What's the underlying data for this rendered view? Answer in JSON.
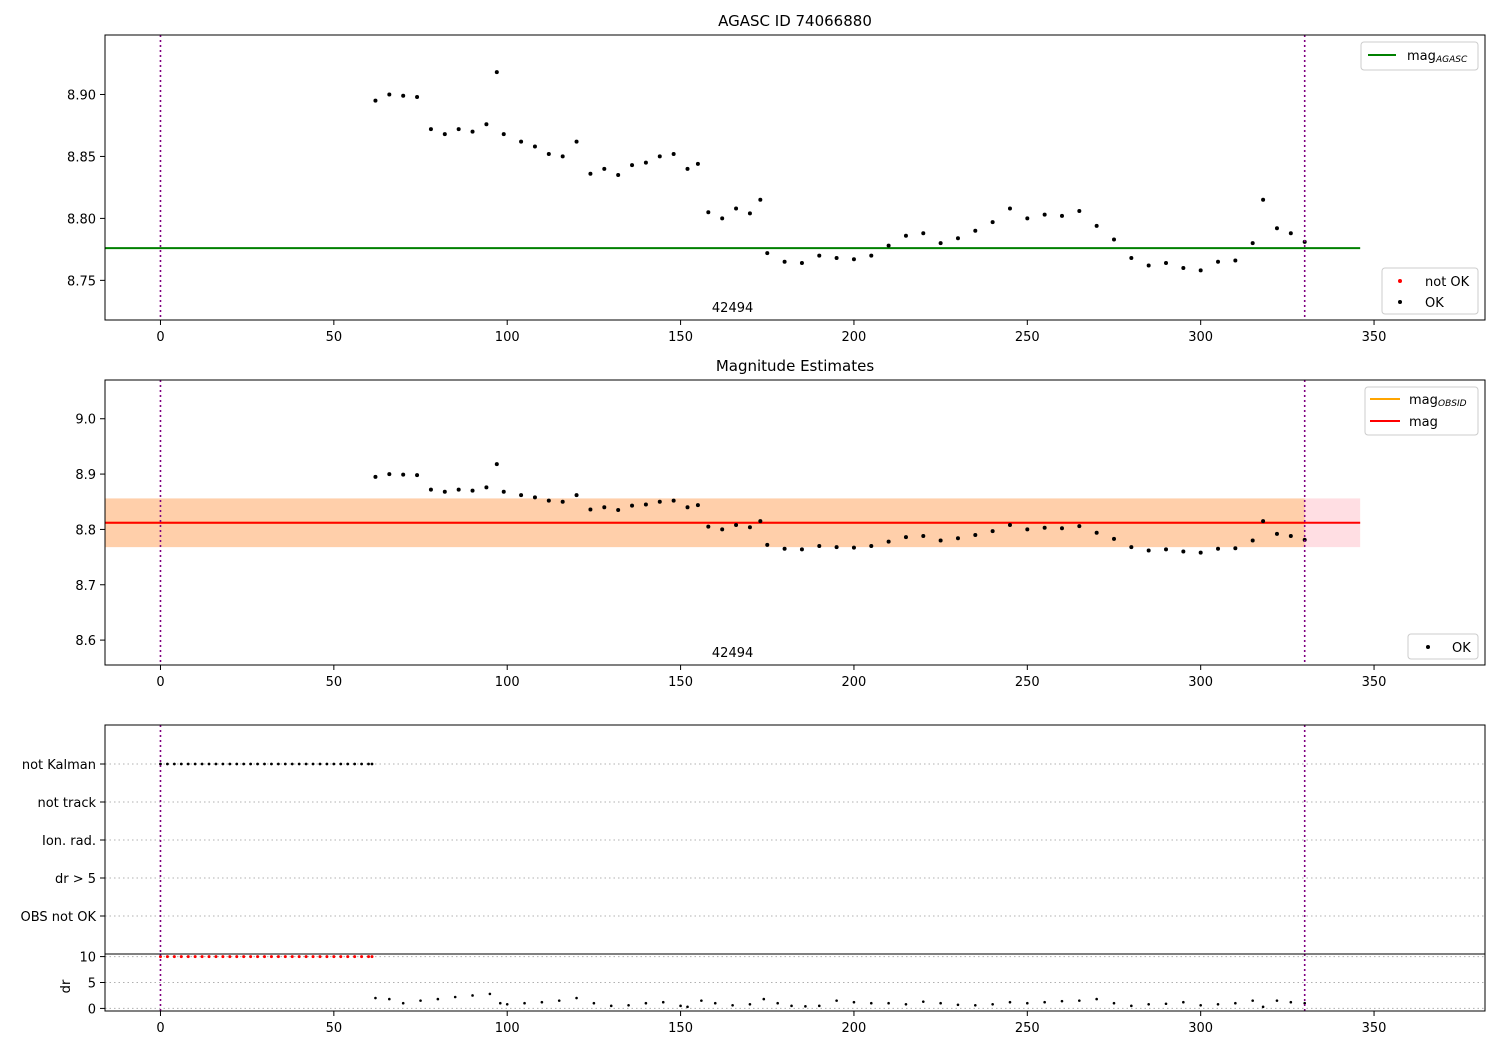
{
  "chart_data": [
    {
      "type": "scatter",
      "title": "AGASC ID 74066880",
      "annotation": "42494",
      "x_ticks": [
        "0",
        "50",
        "100",
        "150",
        "200",
        "250",
        "300",
        "350"
      ],
      "y_ticks": [
        "8.75",
        "8.80",
        "8.85",
        "8.90"
      ],
      "xlim": [
        -16,
        382
      ],
      "ylim": [
        8.718,
        8.948
      ],
      "mag_agasc": 8.776,
      "vlines": [
        0,
        330
      ],
      "legend_lines": [
        {
          "label": "mag",
          "sub": "AGASC",
          "color": "#008000"
        }
      ],
      "legend_points": [
        {
          "label": "not OK",
          "color": "#ff0000"
        },
        {
          "label": "OK",
          "color": "#000000"
        }
      ],
      "series": [
        {
          "name": "OK",
          "x": [
            62,
            66,
            70,
            74,
            78,
            82,
            86,
            90,
            94,
            97,
            99,
            104,
            108,
            112,
            116,
            120,
            124,
            128,
            132,
            136,
            140,
            144,
            148,
            152,
            155,
            158,
            162,
            166,
            170,
            173,
            175,
            180,
            185,
            190,
            195,
            200,
            205,
            210,
            215,
            220,
            225,
            230,
            235,
            240,
            245,
            250,
            255,
            260,
            265,
            270,
            275,
            280,
            285,
            290,
            295,
            300,
            305,
            310,
            315,
            318,
            322,
            326,
            330
          ],
          "y": [
            8.895,
            8.9,
            8.899,
            8.898,
            8.872,
            8.868,
            8.872,
            8.87,
            8.876,
            8.918,
            8.868,
            8.862,
            8.858,
            8.852,
            8.85,
            8.862,
            8.836,
            8.84,
            8.835,
            8.843,
            8.845,
            8.85,
            8.852,
            8.84,
            8.844,
            8.805,
            8.8,
            8.808,
            8.804,
            8.815,
            8.772,
            8.765,
            8.764,
            8.77,
            8.768,
            8.767,
            8.77,
            8.778,
            8.786,
            8.788,
            8.78,
            8.784,
            8.79,
            8.797,
            8.808,
            8.8,
            8.803,
            8.802,
            8.806,
            8.794,
            8.783,
            8.768,
            8.762,
            8.764,
            8.76,
            8.758,
            8.765,
            8.766,
            8.78,
            8.815,
            8.792,
            8.788,
            8.781
          ]
        },
        {
          "name": "not OK",
          "x": [],
          "y": []
        }
      ]
    },
    {
      "type": "scatter",
      "title": "Magnitude Estimates",
      "annotation": "42494",
      "x_ticks": [
        "0",
        "50",
        "100",
        "150",
        "200",
        "250",
        "300",
        "350"
      ],
      "y_ticks": [
        "8.6",
        "8.7",
        "8.8",
        "8.9",
        "9.0"
      ],
      "xlim": [
        -16,
        382
      ],
      "ylim": [
        8.555,
        9.07
      ],
      "mag": 8.812,
      "mag_obsid": 8.812,
      "band_mag": [
        8.768,
        8.856
      ],
      "band_obsid": [
        8.768,
        8.856
      ],
      "vlines": [
        0,
        330
      ],
      "legend_lines": [
        {
          "label": "mag",
          "sub": "OBSID",
          "color": "#ffa500"
        },
        {
          "label": "mag",
          "sub": "",
          "color": "#ff0000"
        }
      ],
      "legend_points": [
        {
          "label": "OK",
          "color": "#000000"
        }
      ],
      "series": [
        {
          "name": "OK",
          "x": [
            62,
            66,
            70,
            74,
            78,
            82,
            86,
            90,
            94,
            97,
            99,
            104,
            108,
            112,
            116,
            120,
            124,
            128,
            132,
            136,
            140,
            144,
            148,
            152,
            155,
            158,
            162,
            166,
            170,
            173,
            175,
            180,
            185,
            190,
            195,
            200,
            205,
            210,
            215,
            220,
            225,
            230,
            235,
            240,
            245,
            250,
            255,
            260,
            265,
            270,
            275,
            280,
            285,
            290,
            295,
            300,
            305,
            310,
            315,
            318,
            322,
            326,
            330
          ],
          "y": [
            8.895,
            8.9,
            8.899,
            8.898,
            8.872,
            8.868,
            8.872,
            8.87,
            8.876,
            8.918,
            8.868,
            8.862,
            8.858,
            8.852,
            8.85,
            8.862,
            8.836,
            8.84,
            8.835,
            8.843,
            8.845,
            8.85,
            8.852,
            8.84,
            8.844,
            8.805,
            8.8,
            8.808,
            8.804,
            8.815,
            8.772,
            8.765,
            8.764,
            8.77,
            8.768,
            8.767,
            8.77,
            8.778,
            8.786,
            8.788,
            8.78,
            8.784,
            8.79,
            8.797,
            8.808,
            8.8,
            8.803,
            8.802,
            8.806,
            8.794,
            8.783,
            8.768,
            8.762,
            8.764,
            8.76,
            8.758,
            8.765,
            8.766,
            8.78,
            8.815,
            8.792,
            8.788,
            8.781
          ]
        }
      ]
    },
    {
      "type": "scatter",
      "title": "",
      "flag_rows": [
        "not Kalman",
        "not track",
        "Ion. rad.",
        "dr > 5",
        "OBS not OK"
      ],
      "x_ticks": [
        "0",
        "50",
        "100",
        "150",
        "200",
        "250",
        "300",
        "350"
      ],
      "xlim": [
        -16,
        382
      ],
      "vlines": [
        0,
        330
      ],
      "not_kalman_x": [
        0,
        2,
        4,
        6,
        8,
        10,
        12,
        14,
        16,
        18,
        20,
        22,
        24,
        26,
        28,
        30,
        32,
        34,
        36,
        38,
        40,
        42,
        44,
        46,
        48,
        50,
        52,
        54,
        56,
        58,
        60,
        61
      ]
    },
    {
      "type": "scatter",
      "title": "",
      "ylabel": "dr",
      "x_ticks": [
        "0",
        "50",
        "100",
        "150",
        "200",
        "250",
        "300",
        "350"
      ],
      "y_ticks": [
        "0",
        "5",
        "10"
      ],
      "xlim": [
        -16,
        382
      ],
      "ylim": [
        -0.5,
        10.5
      ],
      "vlines": [
        0,
        330
      ],
      "series": [
        {
          "name": "OK",
          "x": [
            62,
            66,
            70,
            75,
            80,
            85,
            90,
            95,
            98,
            100,
            105,
            110,
            115,
            120,
            125,
            130,
            135,
            140,
            145,
            150,
            152,
            156,
            160,
            165,
            170,
            174,
            178,
            182,
            186,
            190,
            195,
            200,
            205,
            210,
            215,
            220,
            225,
            230,
            235,
            240,
            245,
            250,
            255,
            260,
            265,
            270,
            275,
            280,
            285,
            290,
            295,
            300,
            305,
            310,
            315,
            318,
            322,
            326,
            330
          ],
          "y": [
            2.0,
            1.8,
            1.0,
            1.5,
            1.8,
            2.2,
            2.5,
            2.8,
            1.0,
            0.8,
            1.0,
            1.2,
            1.5,
            2.0,
            1.0,
            0.5,
            0.6,
            1.0,
            1.2,
            0.5,
            0.3,
            1.5,
            1.0,
            0.6,
            0.8,
            1.8,
            1.0,
            0.5,
            0.4,
            0.5,
            1.5,
            1.2,
            1.0,
            1.0,
            0.8,
            1.3,
            1.0,
            0.7,
            0.6,
            0.8,
            1.2,
            1.0,
            1.2,
            1.4,
            1.5,
            1.8,
            1.0,
            0.5,
            0.8,
            0.9,
            1.2,
            0.6,
            0.8,
            1.0,
            1.5,
            0.3,
            1.5,
            1.2,
            1.0
          ]
        },
        {
          "name": "not OK",
          "x": [
            0,
            2,
            4,
            6,
            8,
            10,
            12,
            14,
            16,
            18,
            20,
            22,
            24,
            26,
            28,
            30,
            32,
            34,
            36,
            38,
            40,
            42,
            44,
            46,
            48,
            50,
            52,
            54,
            56,
            58,
            60,
            61
          ],
          "y": [
            10,
            10,
            10,
            10,
            10,
            10,
            10,
            10,
            10,
            10,
            10,
            10,
            10,
            10,
            10,
            10,
            10,
            10,
            10,
            10,
            10,
            10,
            10,
            10,
            10,
            10,
            10,
            10,
            10,
            10,
            10,
            10
          ]
        }
      ]
    }
  ]
}
